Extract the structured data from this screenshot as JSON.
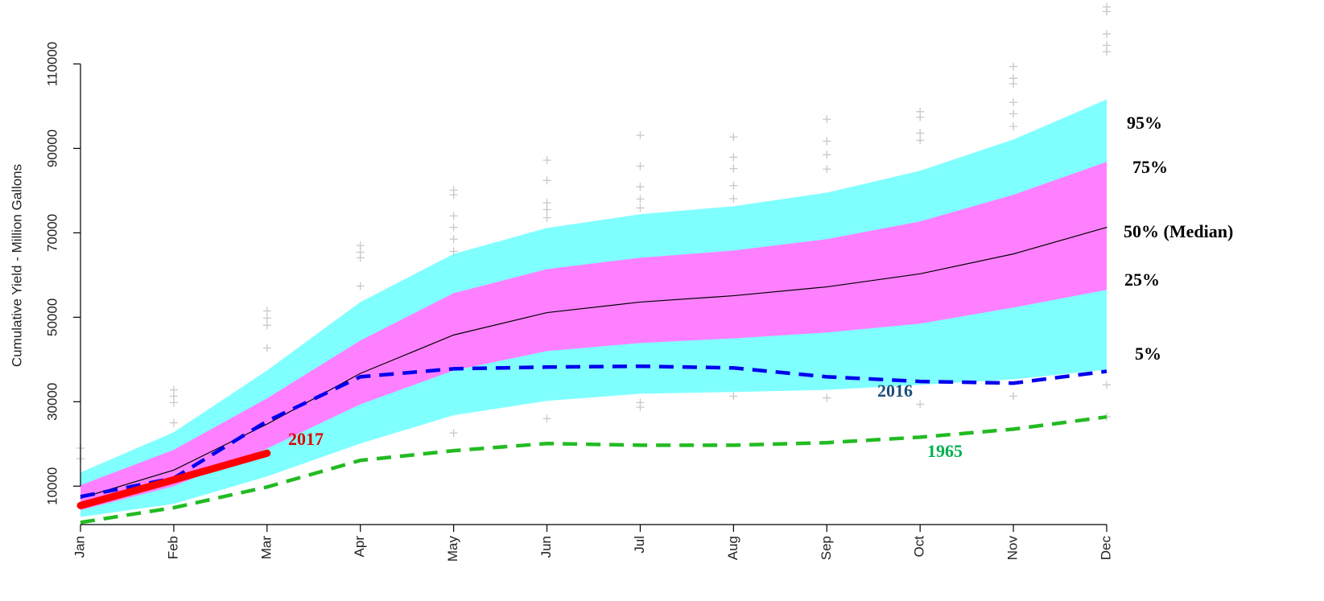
{
  "chart_data": {
    "type": "line",
    "ylabel": "Cumulative Yield - Million Gallons",
    "categories": [
      "Jan",
      "Feb",
      "Mar",
      "Apr",
      "May",
      "Jun",
      "Jul",
      "Aug",
      "Sep",
      "Oct",
      "Nov",
      "Dec"
    ],
    "ylim": [
      900,
      124000
    ],
    "yticks": [
      10000,
      30000,
      50000,
      70000,
      90000,
      110000
    ],
    "series": [
      {
        "name": "5%",
        "style": "band",
        "color": "#80ffff",
        "label_color": "#000000",
        "values": [
          2700,
          5800,
          12300,
          20100,
          26800,
          30200,
          31900,
          32300,
          32800,
          34000,
          35300,
          37600
        ]
      },
      {
        "name": "25%",
        "style": "band",
        "color": "#ff80ff",
        "label_color": "#000000",
        "values": [
          4300,
          10000,
          18900,
          29400,
          37400,
          42000,
          43900,
          45000,
          46400,
          48500,
          52300,
          56500
        ]
      },
      {
        "name": "50% (Median)",
        "style": "line",
        "color": "#000000",
        "label_color": "#000000",
        "values": [
          7150,
          13800,
          24700,
          36700,
          45800,
          51100,
          53600,
          55100,
          57200,
          60300,
          65000,
          71300
        ]
      },
      {
        "name": "75%",
        "style": "band",
        "color": "#ff80ff",
        "label_color": "#000000",
        "values": [
          10200,
          18600,
          30800,
          44500,
          55700,
          61400,
          64100,
          65800,
          68500,
          72700,
          79000,
          86800
        ]
      },
      {
        "name": "95%",
        "style": "band",
        "color": "#80ffff",
        "label_color": "#000000",
        "values": [
          13240,
          22760,
          37400,
          53600,
          65000,
          71150,
          74400,
          76300,
          79500,
          84700,
          92100,
          101600
        ]
      },
      {
        "name": "2016",
        "style": "dashed",
        "color": "#0000ee",
        "label_color": "#1f4e79",
        "values": [
          7500,
          11900,
          25400,
          35900,
          37800,
          38200,
          38400,
          38000,
          35900,
          34800,
          34400,
          37200
        ]
      },
      {
        "name": "1965",
        "style": "dashed",
        "color": "#22bb22",
        "label_color": "#00b050",
        "values": [
          1400,
          4900,
          9800,
          16100,
          18400,
          20100,
          19700,
          19700,
          20300,
          21600,
          23500,
          26400
        ]
      },
      {
        "name": "2017",
        "style": "thick",
        "color": "#ff0000",
        "label_color": "#e00000",
        "values": [
          5400,
          11500,
          17800,
          null,
          null,
          null,
          null,
          null,
          null,
          null,
          null,
          null
        ]
      }
    ],
    "points": {
      "color": "#c8c8c8",
      "x": [
        "Jan",
        "Jan",
        "Feb",
        "Feb",
        "Feb",
        "Feb",
        "Mar",
        "Mar",
        "Mar",
        "Mar",
        "Apr",
        "Apr",
        "Apr",
        "Apr",
        "May",
        "May",
        "May",
        "May",
        "May",
        "May",
        "May",
        "Jun",
        "Jun",
        "Jun",
        "Jun",
        "Jun",
        "Jun",
        "Jul",
        "Jul",
        "Jul",
        "Jul",
        "Jul",
        "Jul",
        "Jul",
        "Aug",
        "Aug",
        "Aug",
        "Aug",
        "Aug",
        "Aug",
        "Sep",
        "Sep",
        "Sep",
        "Sep",
        "Sep",
        "Oct",
        "Oct",
        "Oct",
        "Oct",
        "Oct",
        "Nov",
        "Nov",
        "Nov",
        "Nov",
        "Nov",
        "Nov",
        "Nov",
        "Dec",
        "Dec",
        "Dec",
        "Dec",
        "Dec",
        "Dec",
        "Dec"
      ],
      "values": [
        19000,
        16500,
        32800,
        31300,
        29800,
        25000,
        51500,
        49800,
        48100,
        42700,
        67000,
        65400,
        64100,
        57400,
        80100,
        79000,
        74000,
        71300,
        68500,
        65600,
        22600,
        87200,
        82400,
        77100,
        75500,
        73600,
        26000,
        93100,
        85800,
        80900,
        78000,
        75900,
        29800,
        28700,
        92700,
        87900,
        85200,
        81200,
        78100,
        31300,
        96900,
        91700,
        88500,
        85100,
        30900,
        98700,
        97400,
        93600,
        91900,
        29400,
        109400,
        106600,
        105300,
        100900,
        98200,
        95200,
        31300,
        123500,
        122400,
        117100,
        114400,
        112900,
        34000,
        26400
      ]
    }
  }
}
